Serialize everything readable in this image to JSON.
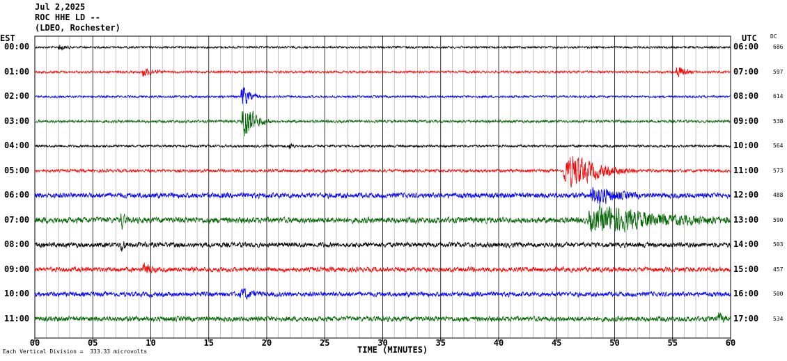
{
  "header": {
    "date": "Jul 2,2025",
    "station": "ROC HHE LD --",
    "network": "(LDEO, Rochester)"
  },
  "left_tz": "EST",
  "right_tz": "UTC",
  "dc_header": "DC",
  "footer": "Each Vertical Division =  333.33 microvolts",
  "chart_data": {
    "type": "line",
    "xlabel": "TIME (MINUTES)",
    "xlim": [
      0,
      60
    ],
    "x_ticks": [
      "00",
      "05",
      "10",
      "15",
      "20",
      "25",
      "30",
      "35",
      "40",
      "45",
      "50",
      "55",
      "60"
    ],
    "grid": "vertical lines every minute",
    "colors": [
      "#000000",
      "#ff0000",
      "#0000ff",
      "#006400"
    ],
    "series": [
      {
        "est": "00:00",
        "utc": "06:00",
        "dc": "686",
        "color": "#000000",
        "noise": 0.35
      },
      {
        "est": "01:00",
        "utc": "07:00",
        "dc": "597",
        "color": "#ff0000",
        "noise": 0.38
      },
      {
        "est": "02:00",
        "utc": "08:00",
        "dc": "614",
        "color": "#0000ff",
        "noise": 0.38
      },
      {
        "est": "03:00",
        "utc": "09:00",
        "dc": "538",
        "color": "#006400",
        "noise": 0.45
      },
      {
        "est": "04:00",
        "utc": "10:00",
        "dc": "564",
        "color": "#000000",
        "noise": 0.42
      },
      {
        "est": "05:00",
        "utc": "11:00",
        "dc": "573",
        "color": "#ff0000",
        "noise": 0.5
      },
      {
        "est": "06:00",
        "utc": "12:00",
        "dc": "488",
        "color": "#0000ff",
        "noise": 0.9
      },
      {
        "est": "07:00",
        "utc": "13:00",
        "dc": "590",
        "color": "#006400",
        "noise": 1.0
      },
      {
        "est": "08:00",
        "utc": "14:00",
        "dc": "503",
        "color": "#000000",
        "noise": 0.85
      },
      {
        "est": "09:00",
        "utc": "15:00",
        "dc": "457",
        "color": "#ff0000",
        "noise": 0.8
      },
      {
        "est": "10:00",
        "utc": "16:00",
        "dc": "500",
        "color": "#0000ff",
        "noise": 0.8
      },
      {
        "est": "11:00",
        "utc": "17:00",
        "dc": "534",
        "color": "#006400",
        "noise": 0.85
      }
    ],
    "events": [
      {
        "trace": 0,
        "minute": 2.2,
        "amp": 1.0,
        "dur": 0.6
      },
      {
        "trace": 1,
        "minute": 9.5,
        "amp": 1.6,
        "dur": 1.0
      },
      {
        "trace": 1,
        "minute": 55.5,
        "amp": 2.0,
        "dur": 0.8
      },
      {
        "trace": 2,
        "minute": 18.0,
        "amp": 3.5,
        "dur": 0.8
      },
      {
        "trace": 3,
        "minute": 18.2,
        "amp": 6.0,
        "dur": 1.2
      },
      {
        "trace": 4,
        "minute": 22.0,
        "amp": 1.6,
        "dur": 0.3
      },
      {
        "trace": 5,
        "minute": 46.5,
        "amp": 5.5,
        "dur": 3.0
      },
      {
        "trace": 6,
        "minute": 48.5,
        "amp": 3.0,
        "dur": 2.0
      },
      {
        "trace": 7,
        "minute": 49.5,
        "amp": 4.0,
        "dur": 6.0
      },
      {
        "trace": 7,
        "minute": 7.5,
        "amp": 3.0,
        "dur": 0.3
      },
      {
        "trace": 8,
        "minute": 7.5,
        "amp": 2.5,
        "dur": 0.3
      },
      {
        "trace": 9,
        "minute": 9.5,
        "amp": 2.0,
        "dur": 0.6
      },
      {
        "trace": 10,
        "minute": 18.0,
        "amp": 1.6,
        "dur": 1.0
      },
      {
        "trace": 11,
        "minute": 59.0,
        "amp": 2.0,
        "dur": 0.4
      }
    ]
  }
}
